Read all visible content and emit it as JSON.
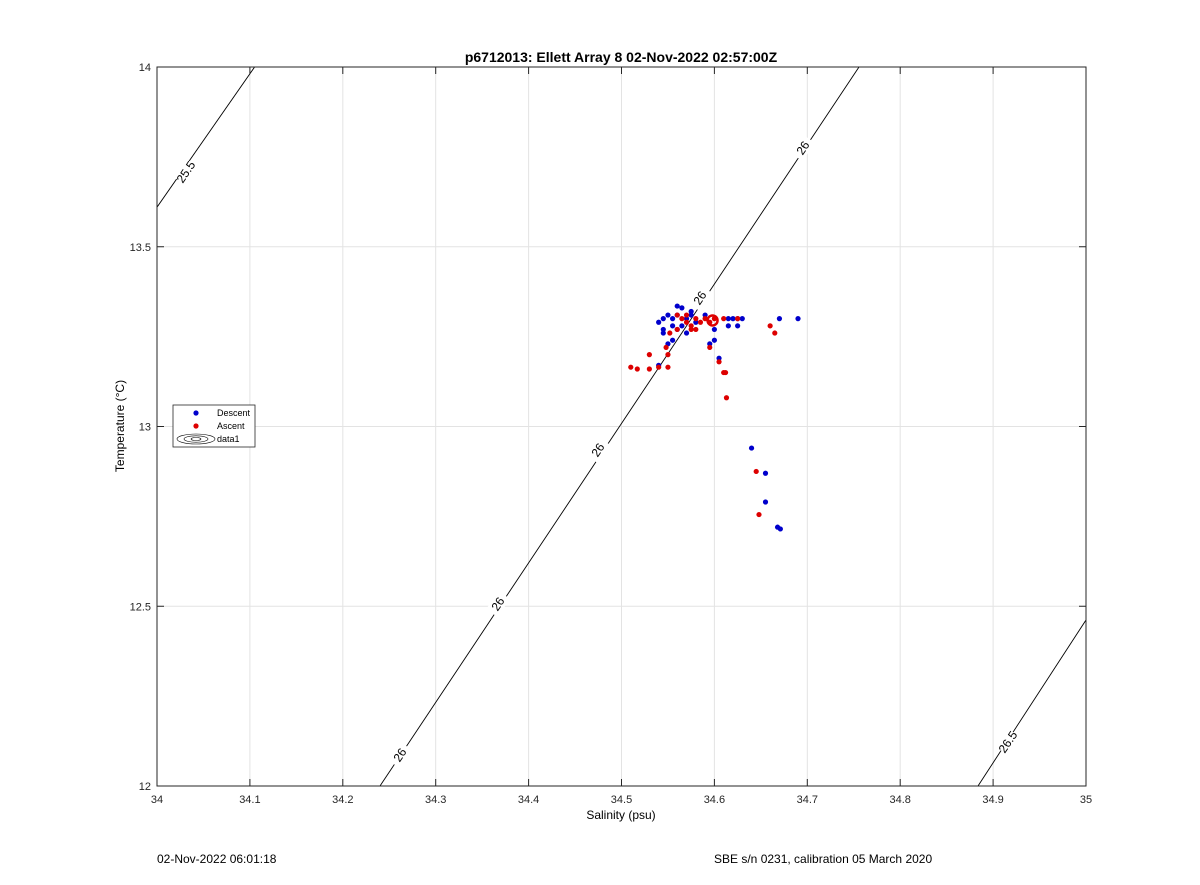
{
  "chart_data": {
    "type": "scatter",
    "title": "p6712013: Ellett Array 8 02-Nov-2022 02:57:00Z",
    "xlabel": "Salinity (psu)",
    "ylabel": "Temperature (°C)",
    "xlim": [
      34,
      35
    ],
    "ylim": [
      12,
      14
    ],
    "xticks": [
      "34",
      "34.1",
      "34.2",
      "34.3",
      "34.4",
      "34.5",
      "34.6",
      "34.7",
      "34.8",
      "34.9",
      "35"
    ],
    "yticks": [
      "12",
      "12.5",
      "13",
      "13.5",
      "14"
    ],
    "grid": true,
    "legend": {
      "position": "left",
      "entries": [
        "Descent",
        "Ascent",
        "data1"
      ]
    },
    "series": [
      {
        "name": "Descent",
        "color": "#0000cc",
        "points": [
          [
            34.54,
            13.29
          ],
          [
            34.545,
            13.27
          ],
          [
            34.55,
            13.31
          ],
          [
            34.555,
            13.3
          ],
          [
            34.56,
            13.31
          ],
          [
            34.565,
            13.33
          ],
          [
            34.56,
            13.335
          ],
          [
            34.57,
            13.3
          ],
          [
            34.575,
            13.31
          ],
          [
            34.58,
            13.29
          ],
          [
            34.57,
            13.26
          ],
          [
            34.555,
            13.24
          ],
          [
            34.55,
            13.23
          ],
          [
            34.545,
            13.26
          ],
          [
            34.545,
            13.3
          ],
          [
            34.555,
            13.28
          ],
          [
            34.56,
            13.27
          ],
          [
            34.565,
            13.28
          ],
          [
            34.575,
            13.32
          ],
          [
            34.59,
            13.31
          ],
          [
            34.6,
            13.27
          ],
          [
            34.6,
            13.24
          ],
          [
            34.595,
            13.23
          ],
          [
            34.615,
            13.3
          ],
          [
            34.62,
            13.3
          ],
          [
            34.625,
            13.3
          ],
          [
            34.63,
            13.3
          ],
          [
            34.625,
            13.28
          ],
          [
            34.67,
            13.3
          ],
          [
            34.69,
            13.3
          ],
          [
            34.615,
            13.28
          ],
          [
            34.54,
            13.17
          ],
          [
            34.605,
            13.19
          ],
          [
            34.64,
            12.94
          ],
          [
            34.655,
            12.87
          ],
          [
            34.655,
            12.79
          ],
          [
            34.668,
            12.72
          ],
          [
            34.671,
            12.715
          ]
        ]
      },
      {
        "name": "Ascent",
        "color": "#dd0000",
        "points": [
          [
            34.548,
            13.22
          ],
          [
            34.552,
            13.26
          ],
          [
            34.56,
            13.27
          ],
          [
            34.565,
            13.3
          ],
          [
            34.57,
            13.29
          ],
          [
            34.575,
            13.28
          ],
          [
            34.58,
            13.3
          ],
          [
            34.585,
            13.29
          ],
          [
            34.59,
            13.3
          ],
          [
            34.595,
            13.29
          ],
          [
            34.6,
            13.3
          ],
          [
            34.575,
            13.27
          ],
          [
            34.56,
            13.31
          ],
          [
            34.57,
            13.31
          ],
          [
            34.58,
            13.27
          ],
          [
            34.61,
            13.3
          ],
          [
            34.625,
            13.3
          ],
          [
            34.66,
            13.28
          ],
          [
            34.665,
            13.26
          ],
          [
            34.55,
            13.2
          ],
          [
            34.53,
            13.2
          ],
          [
            34.51,
            13.165
          ],
          [
            34.517,
            13.16
          ],
          [
            34.53,
            13.16
          ],
          [
            34.55,
            13.165
          ],
          [
            34.54,
            13.165
          ],
          [
            34.595,
            13.22
          ],
          [
            34.605,
            13.18
          ],
          [
            34.61,
            13.15
          ],
          [
            34.612,
            13.15
          ],
          [
            34.613,
            13.08
          ],
          [
            34.645,
            12.875
          ],
          [
            34.648,
            12.755
          ]
        ]
      }
    ],
    "contours": [
      {
        "level": "25.5",
        "labels": [
          "25.5"
        ]
      },
      {
        "level": "26",
        "labels": [
          "26",
          "26",
          "26",
          "26",
          "26"
        ]
      },
      {
        "level": "26.5",
        "labels": [
          "26.5"
        ]
      }
    ]
  },
  "footer": {
    "timestamp": "02-Nov-2022 06:01:18",
    "instrument": "SBE s/n 0231, calibration 05 March 2020"
  }
}
